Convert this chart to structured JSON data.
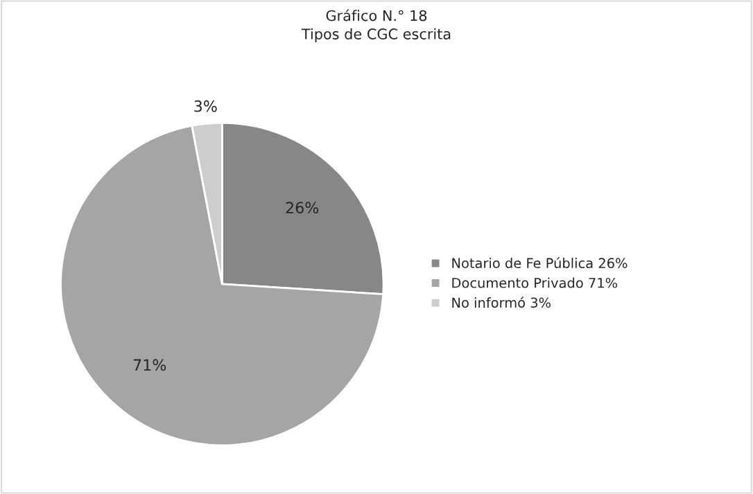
{
  "chart_data": {
    "type": "pie",
    "title": "Gráfico N.° 18\nTipos de CGC escrita",
    "categories": [
      "Notario de Fe Pública",
      "Documento Privado",
      "No informó"
    ],
    "values": [
      26,
      71,
      3
    ],
    "value_labels": [
      "26%",
      "71%",
      "3%"
    ],
    "colors": [
      "#878787",
      "#a5a5a5",
      "#cdcdcd"
    ],
    "legend": "right"
  }
}
